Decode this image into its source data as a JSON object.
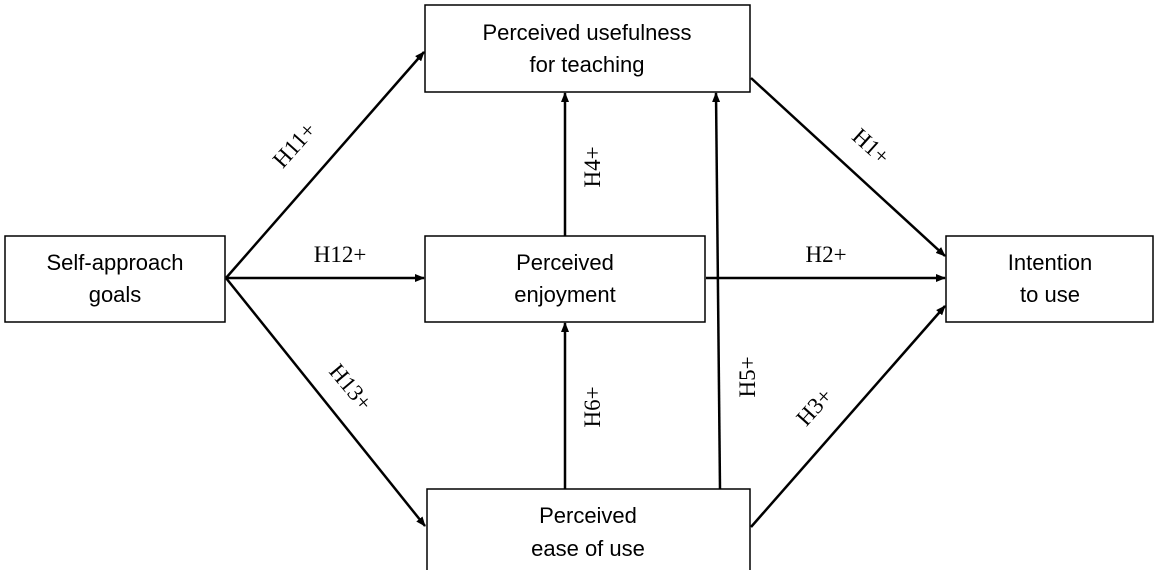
{
  "nodes": [
    {
      "lines": [
        "Self-approach",
        "goals"
      ]
    },
    {
      "lines": [
        "Perceived usefulness",
        "for teaching"
      ]
    },
    {
      "lines": [
        "Perceived",
        "enjoyment"
      ]
    },
    {
      "lines": [
        "Intention",
        "to use"
      ]
    },
    {
      "lines": [
        "Perceived",
        "ease of use"
      ]
    }
  ],
  "edges": [
    {
      "label": "H11+"
    },
    {
      "label": "H12+"
    },
    {
      "label": "H13+"
    },
    {
      "label": "H4+"
    },
    {
      "label": "H6+"
    },
    {
      "label": "H5+"
    },
    {
      "label": "H1+"
    },
    {
      "label": "H2+"
    },
    {
      "label": "H3+"
    }
  ]
}
